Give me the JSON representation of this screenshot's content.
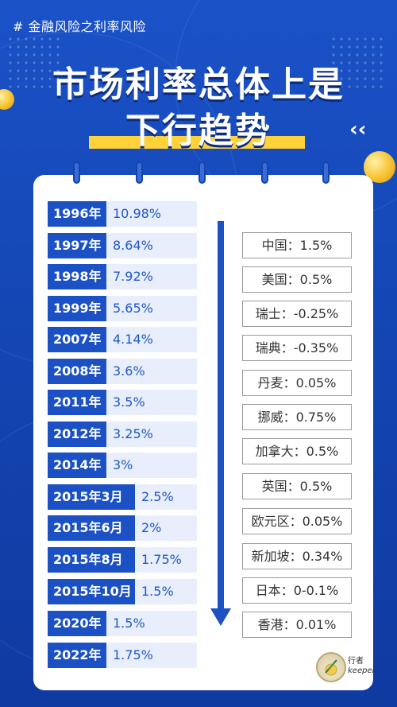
{
  "tag": "# 金融风险之利率风险",
  "headline": {
    "line1": "市场利率总体上是",
    "line2": "下行趋势"
  },
  "china_rates": [
    {
      "year": "1996年",
      "rate": "10.98%"
    },
    {
      "year": "1997年",
      "rate": "8.64%"
    },
    {
      "year": "1998年",
      "rate": "7.92%"
    },
    {
      "year": "1999年",
      "rate": "5.65%"
    },
    {
      "year": "2007年",
      "rate": "4.14%"
    },
    {
      "year": "2008年",
      "rate": "3.6%"
    },
    {
      "year": "2011年",
      "rate": "3.5%"
    },
    {
      "year": "2012年",
      "rate": "3.25%"
    },
    {
      "year": "2014年",
      "rate": "3%"
    },
    {
      "year": "2015年3月",
      "rate": "2.5%"
    },
    {
      "year": "2015年6月",
      "rate": "2%"
    },
    {
      "year": "2015年8月",
      "rate": "1.75%"
    },
    {
      "year": "2015年10月",
      "rate": "1.5%"
    },
    {
      "year": "2020年",
      "rate": "1.5%"
    },
    {
      "year": "2022年",
      "rate": "1.75%"
    }
  ],
  "country_rates": [
    "中国：1.5%",
    "美国：0.5%",
    "瑞士：-0.25%",
    "瑞典：-0.35%",
    "丹麦：0.05%",
    "挪威：0.75%",
    "加拿大：0.5%",
    "英国：0.5%",
    "欧元区：0.05%",
    "新加坡：0.34%",
    "日本：0-0.1%",
    "香港：0.01%"
  ],
  "logo": {
    "text_cn": "行者",
    "text_en": "keeper",
    "icon": "keeper-logo-icon"
  },
  "colors": {
    "primary_blue": "#1b51c4",
    "accent_yellow": "#ffd23a",
    "card_bg": "#ffffff"
  }
}
